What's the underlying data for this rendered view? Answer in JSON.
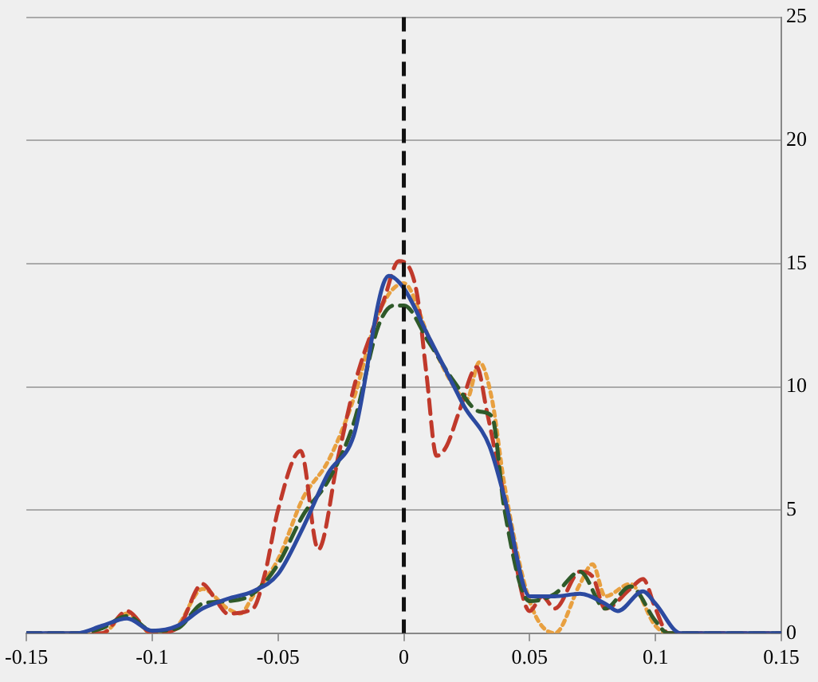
{
  "chart_data": {
    "type": "line",
    "xlim": [
      -0.15,
      0.15
    ],
    "xticks": [
      -0.15,
      -0.1,
      -0.05,
      0,
      0.05,
      0.1,
      0.15
    ],
    "ylim": [
      0,
      25
    ],
    "yticks": [
      0,
      5,
      10,
      15,
      20,
      25
    ],
    "grid": "y",
    "legend": false,
    "marker": "none",
    "ref_lines": [
      {
        "axis": "x",
        "value": 0,
        "color": "#111111",
        "line_style": "dashed"
      }
    ],
    "series": [
      {
        "color": "#2c4aa0",
        "line_style": "solid",
        "x": [
          -0.15,
          -0.13,
          -0.12,
          -0.11,
          -0.1,
          -0.09,
          -0.08,
          -0.07,
          -0.06,
          -0.05,
          -0.04,
          -0.03,
          -0.02,
          -0.006,
          0,
          0.01,
          0.02,
          0.024,
          0.034,
          0.04,
          0.05,
          0.06,
          0.07,
          0.08,
          0.085,
          0.095,
          0.1,
          0.11,
          0.15
        ],
        "values": [
          0,
          0,
          0.3,
          0.6,
          0.1,
          0.3,
          1.0,
          1.4,
          1.7,
          2.4,
          4.3,
          6.5,
          8.0,
          14.5,
          14.0,
          12.0,
          10.0,
          9.2,
          7.6,
          5.5,
          1.5,
          1.5,
          1.6,
          1.2,
          0.9,
          1.7,
          1.2,
          0,
          0
        ]
      },
      {
        "color": "#2f5a2a",
        "line_style": "dashed",
        "x": [
          -0.15,
          -0.13,
          -0.12,
          -0.11,
          -0.1,
          -0.09,
          -0.08,
          -0.07,
          -0.06,
          -0.05,
          -0.04,
          -0.03,
          -0.02,
          -0.01,
          -0.004,
          0,
          0.01,
          0.02,
          0.03,
          0.035,
          0.04,
          0.05,
          0.06,
          0.07,
          0.08,
          0.09,
          0.1,
          0.105,
          0.15
        ],
        "values": [
          0,
          0,
          0.2,
          0.7,
          0.1,
          0.2,
          1.2,
          1.3,
          1.6,
          2.8,
          4.8,
          6.2,
          8.5,
          12.5,
          13.3,
          13.3,
          11.8,
          10.2,
          9.0,
          8.8,
          5.0,
          1.3,
          1.6,
          2.5,
          1.0,
          1.9,
          0.5,
          0,
          0
        ]
      },
      {
        "color": "#c0392b",
        "line_style": "dashed",
        "x": [
          -0.15,
          -0.12,
          -0.11,
          -0.1,
          -0.09,
          -0.08,
          -0.075,
          -0.07,
          -0.06,
          -0.055,
          -0.05,
          -0.041,
          -0.034,
          -0.026,
          -0.019,
          -0.008,
          -0.002,
          0.005,
          0.009,
          0.013,
          0.017,
          0.022,
          0.029,
          0.033,
          0.04,
          0.05,
          0.055,
          0.06,
          0.07,
          0.075,
          0.08,
          0.09,
          0.095,
          0.1,
          0.105,
          0.15
        ],
        "values": [
          0,
          0,
          0.9,
          0,
          0.2,
          2.0,
          1.4,
          0.8,
          1.0,
          2.5,
          5.0,
          7.4,
          3.4,
          7.2,
          10.3,
          13.5,
          15.1,
          13.9,
          10.5,
          7.2,
          7.6,
          9.0,
          10.8,
          9.0,
          5.5,
          0.9,
          1.5,
          1.0,
          2.5,
          2.3,
          1.0,
          1.8,
          2.2,
          1.0,
          0,
          0
        ]
      },
      {
        "color": "#e8a040",
        "line_style": "dotted",
        "x": [
          -0.15,
          -0.12,
          -0.11,
          -0.1,
          -0.09,
          -0.08,
          -0.07,
          -0.065,
          -0.06,
          -0.05,
          -0.04,
          -0.03,
          -0.02,
          -0.01,
          0,
          0.01,
          0.02,
          0.025,
          0.03,
          0.035,
          0.04,
          0.05,
          0.06,
          0.07,
          0.075,
          0.08,
          0.09,
          0.1,
          0.105,
          0.15
        ],
        "values": [
          0,
          0,
          0.8,
          0,
          0.3,
          1.8,
          1.0,
          0.8,
          1.5,
          3.0,
          5.5,
          7.0,
          9.5,
          13.0,
          14.2,
          12.0,
          10.0,
          9.5,
          11.0,
          9.5,
          6.0,
          1.3,
          0,
          2.0,
          2.8,
          1.5,
          2.0,
          0.3,
          0,
          0
        ]
      }
    ]
  }
}
